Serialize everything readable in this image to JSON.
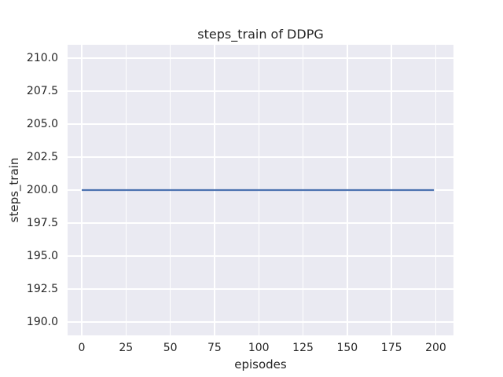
{
  "figure": {
    "title": "steps_train of DDPG",
    "xlabel": "episodes",
    "ylabel": "steps_train"
  },
  "chart_data": {
    "type": "line",
    "title": "steps_train of DDPG",
    "xlabel": "episodes",
    "ylabel": "steps_train",
    "x": [
      0,
      199
    ],
    "series": [
      {
        "name": "steps_train",
        "values": [
          200,
          200
        ],
        "color": "#4c72b0",
        "note": "constant value 200 for all episodes 0-199"
      }
    ],
    "xlim": [
      -8,
      210
    ],
    "ylim": [
      189,
      211
    ],
    "x_ticks": [
      0,
      25,
      50,
      75,
      100,
      125,
      150,
      175,
      200
    ],
    "x_tick_labels": [
      "0",
      "25",
      "50",
      "75",
      "100",
      "125",
      "150",
      "175",
      "200"
    ],
    "y_ticks": [
      190,
      192.5,
      195,
      197.5,
      200,
      202.5,
      205,
      207.5,
      210
    ],
    "y_tick_labels": [
      "190.0",
      "192.5",
      "195.0",
      "197.5",
      "200.0",
      "202.5",
      "205.0",
      "207.5",
      "210.0"
    ],
    "grid": true,
    "legend": null,
    "style": {
      "plot_bg": "#eaeaf2",
      "grid_color": "#ffffff",
      "figure_bg": "#ffffff",
      "text_color": "#262626",
      "line_width": 2.2
    }
  }
}
